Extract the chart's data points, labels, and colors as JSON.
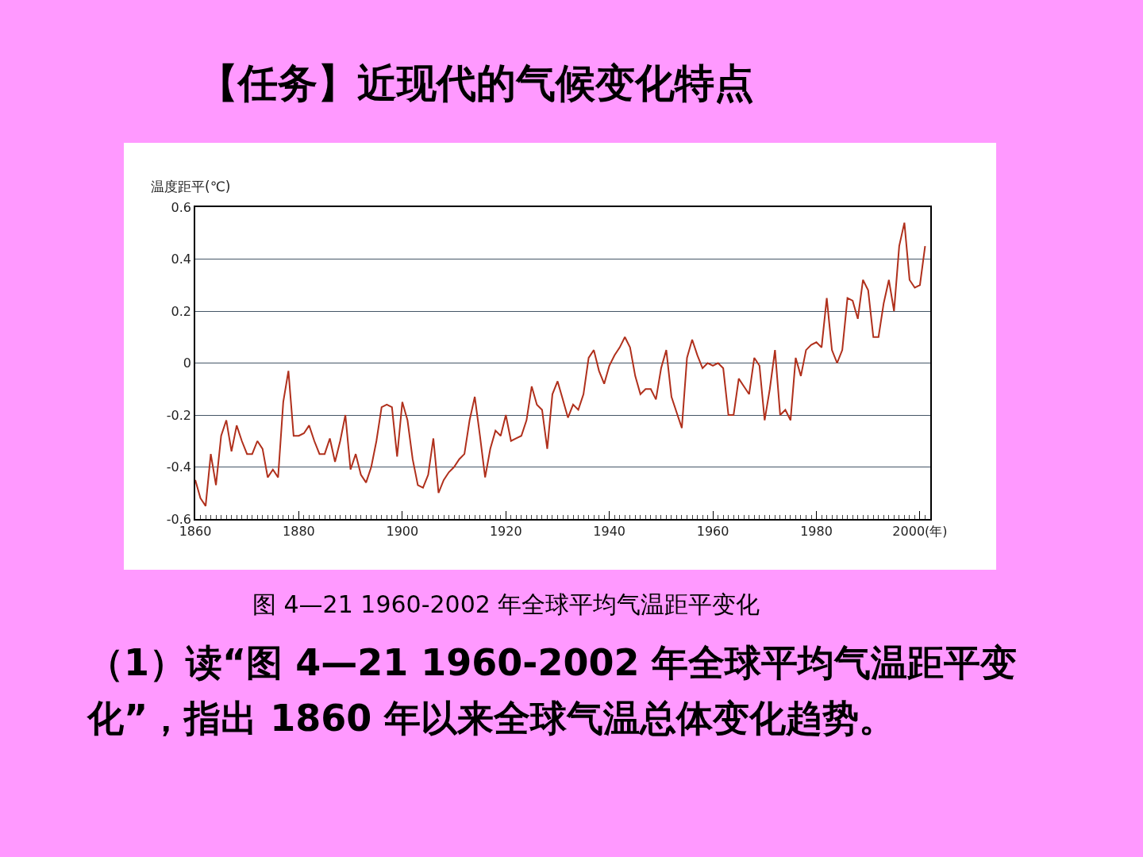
{
  "chart_data": {
    "type": "line",
    "title": "【任务】近现代的气候变化特点",
    "ylabel": "温度距平(℃)",
    "annotations": [
      "图 4—21 1960-2002 年全球平均气温距平变化",
      "（1）读“图 4—21 1960-2002 年全球平均气温距平变化”，指出 1860 年以来全球气温总体变化趋势。"
    ],
    "x": [
      1860,
      1861,
      1862,
      1863,
      1864,
      1865,
      1866,
      1867,
      1868,
      1869,
      1870,
      1871,
      1872,
      1873,
      1874,
      1875,
      1876,
      1877,
      1878,
      1879,
      1880,
      1881,
      1882,
      1883,
      1884,
      1885,
      1886,
      1887,
      1888,
      1889,
      1890,
      1891,
      1892,
      1893,
      1894,
      1895,
      1896,
      1897,
      1898,
      1899,
      1900,
      1901,
      1902,
      1903,
      1904,
      1905,
      1906,
      1907,
      1908,
      1909,
      1910,
      1911,
      1912,
      1913,
      1914,
      1915,
      1916,
      1917,
      1918,
      1919,
      1920,
      1921,
      1922,
      1923,
      1924,
      1925,
      1926,
      1927,
      1928,
      1929,
      1930,
      1931,
      1932,
      1933,
      1934,
      1935,
      1936,
      1937,
      1938,
      1939,
      1940,
      1941,
      1942,
      1943,
      1944,
      1945,
      1946,
      1947,
      1948,
      1949,
      1950,
      1951,
      1952,
      1953,
      1954,
      1955,
      1956,
      1957,
      1958,
      1959,
      1960,
      1961,
      1962,
      1963,
      1964,
      1965,
      1966,
      1967,
      1968,
      1969,
      1970,
      1971,
      1972,
      1973,
      1974,
      1975,
      1976,
      1977,
      1978,
      1979,
      1980,
      1981,
      1982,
      1983,
      1984,
      1985,
      1986,
      1987,
      1988,
      1989,
      1990,
      1991,
      1992,
      1993,
      1994,
      1995,
      1996,
      1997,
      1998,
      1999,
      2000,
      2001
    ],
    "series": [
      {
        "color": "#b0301c",
        "values": [
          -0.45,
          -0.52,
          -0.55,
          -0.35,
          -0.47,
          -0.28,
          -0.22,
          -0.34,
          -0.24,
          -0.3,
          -0.35,
          -0.35,
          -0.3,
          -0.33,
          -0.44,
          -0.41,
          -0.44,
          -0.15,
          -0.03,
          -0.28,
          -0.28,
          -0.27,
          -0.24,
          -0.3,
          -0.35,
          -0.35,
          -0.29,
          -0.38,
          -0.3,
          -0.2,
          -0.41,
          -0.35,
          -0.43,
          -0.46,
          -0.4,
          -0.3,
          -0.17,
          -0.16,
          -0.17,
          -0.36,
          -0.15,
          -0.22,
          -0.37,
          -0.47,
          -0.48,
          -0.43,
          -0.29,
          -0.5,
          -0.45,
          -0.42,
          -0.4,
          -0.37,
          -0.35,
          -0.22,
          -0.13,
          -0.28,
          -0.44,
          -0.33,
          -0.26,
          -0.28,
          -0.2,
          -0.3,
          -0.29,
          -0.28,
          -0.22,
          -0.09,
          -0.16,
          -0.18,
          -0.33,
          -0.12,
          -0.07,
          -0.14,
          -0.21,
          -0.16,
          -0.18,
          -0.12,
          0.02,
          0.05,
          -0.03,
          -0.08,
          -0.01,
          0.03,
          0.06,
          0.1,
          0.06,
          -0.05,
          -0.12,
          -0.1,
          -0.1,
          -0.14,
          -0.02,
          0.05,
          -0.13,
          -0.19,
          -0.25,
          0.02,
          0.09,
          0.03,
          -0.02,
          0,
          -0.01,
          0,
          -0.02,
          -0.2,
          -0.2,
          -0.06,
          -0.09,
          -0.12,
          0.02,
          -0.01,
          -0.22,
          -0.1,
          0.05,
          -0.2,
          -0.18,
          -0.22,
          0.02,
          -0.05,
          0.05,
          0.07,
          0.08,
          0.06,
          0.25,
          0.05,
          0,
          0.05,
          0.25,
          0.24,
          0.17,
          0.32,
          0.28,
          0.1,
          0.1,
          0.23,
          0.32,
          0.2,
          0.45,
          0.54,
          0.32,
          0.29,
          0.3,
          0.45
        ]
      }
    ],
    "xlim": [
      1860,
      2002
    ],
    "xticks": [
      1860,
      1880,
      1900,
      1920,
      1940,
      1960,
      1980,
      {
        "value": 2000,
        "label": "2000(年)"
      }
    ],
    "ylim": [
      -0.6,
      0.6
    ],
    "yticks": [
      -0.6,
      -0.4,
      -0.2,
      0,
      0.2,
      0.4,
      0.6
    ],
    "grid": "y",
    "marker": "none",
    "line_style": "solid"
  }
}
